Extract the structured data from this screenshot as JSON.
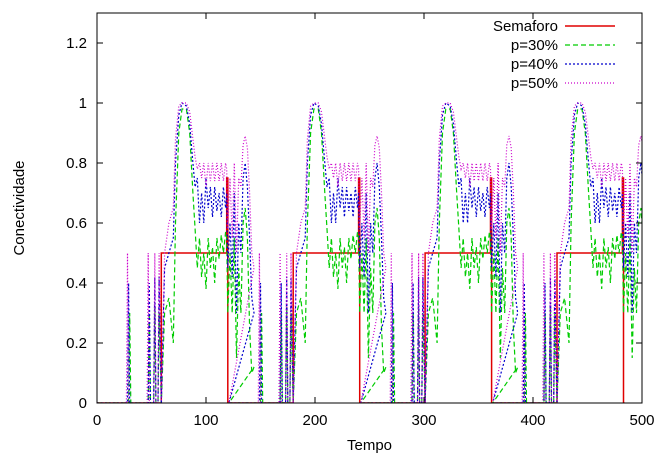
{
  "chart_data": {
    "type": "line",
    "xlabel": "Tempo",
    "ylabel": "Conectividade",
    "xlim": [
      0,
      500
    ],
    "ylim": [
      0,
      1.3
    ],
    "xticks": [
      0,
      100,
      200,
      300,
      400,
      500
    ],
    "yticks": [
      0,
      0.2,
      0.4,
      0.6,
      0.8,
      1,
      1.2
    ],
    "ytick_labels": [
      "0",
      "0.2",
      "0.4",
      "0.6",
      "0.8",
      "1",
      "1.2"
    ],
    "grid": false,
    "legend_position": "top-right",
    "period": 121,
    "cycles": 4,
    "series": [
      {
        "name": "Semaforo",
        "color": "#e00000",
        "dash": "solid",
        "cycle_points": [
          [
            0,
            0
          ],
          [
            59,
            0
          ],
          [
            59,
            0.5
          ],
          [
            119,
            0.5
          ],
          [
            119,
            0.75
          ],
          [
            120,
            0.75
          ],
          [
            120,
            0
          ],
          [
            121,
            0
          ]
        ]
      },
      {
        "name": "p=30%",
        "color": "#00cc00",
        "dash": "dashed",
        "cycle_points": [
          [
            0,
            0
          ],
          [
            29,
            0
          ],
          [
            30,
            0.3
          ],
          [
            31,
            0
          ],
          [
            47,
            0
          ],
          [
            48,
            0.3
          ],
          [
            49,
            0
          ],
          [
            52,
            0
          ],
          [
            53,
            0.32
          ],
          [
            54,
            0
          ],
          [
            56,
            0
          ],
          [
            57,
            0.3
          ],
          [
            59,
            0
          ],
          [
            62,
            0.3
          ],
          [
            66,
            0.35
          ],
          [
            70,
            0.2
          ],
          [
            72,
            0.6
          ],
          [
            75,
            0.9
          ],
          [
            78,
            0.98
          ],
          [
            82,
            0.98
          ],
          [
            85,
            0.9
          ],
          [
            88,
            0.7
          ],
          [
            90,
            0.58
          ],
          [
            92,
            0.45
          ],
          [
            94,
            0.55
          ],
          [
            96,
            0.42
          ],
          [
            98,
            0.5
          ],
          [
            100,
            0.38
          ],
          [
            102,
            0.55
          ],
          [
            104,
            0.45
          ],
          [
            106,
            0.52
          ],
          [
            108,
            0.4
          ],
          [
            110,
            0.55
          ],
          [
            112,
            0.48
          ],
          [
            114,
            0.56
          ],
          [
            116,
            0.5
          ],
          [
            118,
            0.57
          ],
          [
            119,
            0.55
          ],
          [
            120,
            0.3
          ],
          [
            122,
            0.5
          ],
          [
            124,
            0.3
          ],
          [
            126,
            0.55
          ],
          [
            128,
            0.15
          ],
          [
            130,
            0.45
          ],
          [
            132,
            0.3
          ],
          [
            134,
            0.6
          ],
          [
            136,
            0.65
          ],
          [
            138,
            0.55
          ],
          [
            140,
            0.25
          ],
          [
            142,
            0.1
          ],
          [
            144,
            0.12
          ]
        ]
      },
      {
        "name": "p=40%",
        "color": "#0000cc",
        "dash": "dotted",
        "cycle_points": [
          [
            0,
            0
          ],
          [
            28,
            0
          ],
          [
            29,
            0.4
          ],
          [
            30,
            0
          ],
          [
            47,
            0
          ],
          [
            48,
            0.4
          ],
          [
            49,
            0
          ],
          [
            52,
            0
          ],
          [
            53,
            0.42
          ],
          [
            54,
            0
          ],
          [
            56,
            0
          ],
          [
            57,
            0.42
          ],
          [
            59,
            0
          ],
          [
            62,
            0.45
          ],
          [
            66,
            0.5
          ],
          [
            70,
            0.55
          ],
          [
            72,
            0.8
          ],
          [
            75,
            0.96
          ],
          [
            78,
            1.0
          ],
          [
            82,
            0.99
          ],
          [
            85,
            0.93
          ],
          [
            88,
            0.8
          ],
          [
            90,
            0.72
          ],
          [
            92,
            0.75
          ],
          [
            94,
            0.6
          ],
          [
            96,
            0.7
          ],
          [
            98,
            0.6
          ],
          [
            100,
            0.75
          ],
          [
            102,
            0.65
          ],
          [
            104,
            0.72
          ],
          [
            106,
            0.62
          ],
          [
            108,
            0.72
          ],
          [
            110,
            0.64
          ],
          [
            112,
            0.7
          ],
          [
            114,
            0.62
          ],
          [
            116,
            0.72
          ],
          [
            118,
            0.65
          ],
          [
            119,
            0.7
          ],
          [
            120,
            0.45
          ],
          [
            122,
            0.6
          ],
          [
            124,
            0.42
          ],
          [
            126,
            0.7
          ],
          [
            128,
            0.3
          ],
          [
            130,
            0.6
          ],
          [
            132,
            0.5
          ],
          [
            134,
            0.75
          ],
          [
            136,
            0.8
          ],
          [
            138,
            0.72
          ],
          [
            140,
            0.55
          ],
          [
            142,
            0.35
          ],
          [
            144,
            0.3
          ]
        ]
      },
      {
        "name": "p=50%",
        "color": "#cc00cc",
        "dash": "dotted-fine",
        "cycle_points": [
          [
            0,
            0
          ],
          [
            27,
            0
          ],
          [
            28,
            0.5
          ],
          [
            29,
            0
          ],
          [
            46,
            0
          ],
          [
            47,
            0.5
          ],
          [
            48,
            0
          ],
          [
            52,
            0
          ],
          [
            53,
            0.5
          ],
          [
            54,
            0
          ],
          [
            56,
            0
          ],
          [
            57,
            0.5
          ],
          [
            59,
            0
          ],
          [
            62,
            0.5
          ],
          [
            66,
            0.6
          ],
          [
            70,
            0.65
          ],
          [
            72,
            0.88
          ],
          [
            75,
            0.99
          ],
          [
            78,
            1.0
          ],
          [
            82,
            1.0
          ],
          [
            85,
            0.97
          ],
          [
            88,
            0.88
          ],
          [
            90,
            0.82
          ],
          [
            92,
            0.78
          ],
          [
            94,
            0.8
          ],
          [
            96,
            0.75
          ],
          [
            98,
            0.8
          ],
          [
            100,
            0.72
          ],
          [
            102,
            0.8
          ],
          [
            104,
            0.74
          ],
          [
            106,
            0.8
          ],
          [
            108,
            0.74
          ],
          [
            110,
            0.8
          ],
          [
            112,
            0.74
          ],
          [
            114,
            0.8
          ],
          [
            116,
            0.74
          ],
          [
            118,
            0.8
          ],
          [
            119,
            0.78
          ],
          [
            120,
            0.58
          ],
          [
            122,
            0.75
          ],
          [
            124,
            0.55
          ],
          [
            126,
            0.8
          ],
          [
            128,
            0.5
          ],
          [
            130,
            0.75
          ],
          [
            132,
            0.72
          ],
          [
            134,
            0.86
          ],
          [
            136,
            0.89
          ],
          [
            138,
            0.85
          ],
          [
            140,
            0.7
          ],
          [
            142,
            0.5
          ],
          [
            144,
            0.45
          ]
        ]
      }
    ]
  }
}
